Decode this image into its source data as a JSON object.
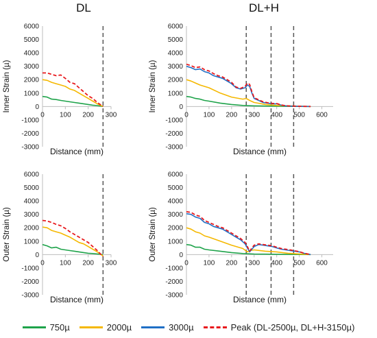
{
  "column_titles": [
    "DL",
    "DL+H"
  ],
  "colors": {
    "750": "#1ea34a",
    "2000": "#f5b800",
    "3000": "#1f6fc5",
    "peak": "#e8191d",
    "dashed_line": "#555555"
  },
  "legend": [
    {
      "label": "750µ",
      "key": "750",
      "style": "solid"
    },
    {
      "label": "2000µ",
      "key": "2000",
      "style": "solid"
    },
    {
      "label": "3000µ",
      "key": "3000",
      "style": "solid"
    },
    {
      "label": "Peak (DL-2500µ, DL+H-3150µ)",
      "key": "peak",
      "style": "dashed"
    }
  ],
  "chart_data": [
    {
      "id": "dl-inner",
      "type": "line",
      "column": "DL",
      "ylabel": "Inner Strain (µ)",
      "xlabel": "Distance (mm)",
      "ylim": [
        -3000,
        6000
      ],
      "yticks": [
        -3000,
        -2000,
        -1000,
        0,
        1000,
        2000,
        3000,
        4000,
        5000,
        6000
      ],
      "xlim": [
        0,
        300
      ],
      "xtick_labels": [
        "0",
        "100",
        "200",
        "300"
      ],
      "xticks": [
        0,
        100,
        200,
        300
      ],
      "vlines": [
        265
      ],
      "series": [
        {
          "key": "750",
          "x": [
            0,
            20,
            40,
            60,
            80,
            100,
            120,
            140,
            160,
            180,
            200,
            220,
            240,
            265
          ],
          "y": [
            750,
            700,
            550,
            520,
            450,
            400,
            350,
            300,
            250,
            200,
            150,
            100,
            70,
            0
          ]
        },
        {
          "key": "2000",
          "x": [
            0,
            20,
            40,
            60,
            80,
            100,
            120,
            140,
            160,
            180,
            200,
            220,
            240,
            265
          ],
          "y": [
            2000,
            1950,
            1800,
            1700,
            1600,
            1500,
            1300,
            1200,
            1000,
            800,
            600,
            400,
            200,
            0
          ]
        },
        {
          "key": "peak",
          "x": [
            0,
            20,
            40,
            60,
            80,
            100,
            120,
            140,
            160,
            180,
            200,
            220,
            240,
            265
          ],
          "y": [
            2500,
            2500,
            2400,
            2300,
            2350,
            2100,
            1800,
            1700,
            1400,
            1100,
            800,
            600,
            300,
            0
          ]
        }
      ]
    },
    {
      "id": "dlh-inner",
      "type": "line",
      "column": "DL+H",
      "ylabel": "Inner Strain (µ)",
      "xlabel": "Distance (mm)",
      "ylim": [
        -3000,
        6000
      ],
      "yticks": [
        -3000,
        -2000,
        -1000,
        0,
        1000,
        2000,
        3000,
        4000,
        5000,
        6000
      ],
      "xlim": [
        0,
        650
      ],
      "xtick_labels": [
        "0",
        "100",
        "200",
        "300",
        "400",
        "500",
        "600"
      ],
      "xticks": [
        0,
        100,
        200,
        300,
        400,
        500,
        600
      ],
      "vlines": [
        265,
        375,
        475
      ],
      "series": [
        {
          "key": "750",
          "x": [
            0,
            20,
            40,
            60,
            80,
            100,
            150,
            200,
            250,
            300,
            350,
            400,
            450,
            500,
            550
          ],
          "y": [
            750,
            700,
            600,
            550,
            450,
            400,
            250,
            150,
            80,
            50,
            30,
            20,
            10,
            5,
            0
          ]
        },
        {
          "key": "2000",
          "x": [
            0,
            20,
            40,
            60,
            80,
            100,
            150,
            200,
            250,
            265,
            280,
            300,
            350,
            400,
            450,
            500,
            550
          ],
          "y": [
            2000,
            1900,
            1750,
            1600,
            1500,
            1400,
            1000,
            700,
            550,
            600,
            450,
            300,
            150,
            80,
            50,
            20,
            0
          ]
        },
        {
          "key": "3000",
          "x": [
            0,
            20,
            40,
            60,
            80,
            100,
            120,
            140,
            160,
            180,
            200,
            220,
            240,
            260,
            270,
            280,
            290,
            300,
            320,
            340,
            360,
            380,
            400,
            420,
            440,
            460,
            480,
            500,
            520,
            550
          ],
          "y": [
            3000,
            2900,
            2750,
            2800,
            2600,
            2500,
            2300,
            2200,
            2100,
            1900,
            1700,
            1400,
            1300,
            1400,
            1600,
            1500,
            1000,
            600,
            450,
            300,
            250,
            200,
            200,
            100,
            50,
            30,
            20,
            10,
            5,
            0
          ]
        },
        {
          "key": "peak",
          "x": [
            0,
            20,
            40,
            60,
            80,
            100,
            120,
            140,
            160,
            180,
            200,
            220,
            240,
            260,
            270,
            280,
            290,
            300,
            320,
            340,
            360,
            380,
            400,
            420,
            440,
            460,
            480,
            500,
            520,
            550
          ],
          "y": [
            3150,
            3050,
            2900,
            2950,
            2750,
            2650,
            2450,
            2300,
            2200,
            2000,
            1800,
            1450,
            1350,
            1500,
            1750,
            1650,
            1100,
            650,
            500,
            350,
            280,
            230,
            220,
            120,
            60,
            40,
            25,
            15,
            8,
            0
          ]
        }
      ]
    },
    {
      "id": "dl-outer",
      "type": "line",
      "column": "DL",
      "ylabel": "Outer Strain (µ)",
      "xlabel": "Distance (mm)",
      "ylim": [
        -3000,
        6000
      ],
      "yticks": [
        -3000,
        -2000,
        -1000,
        0,
        1000,
        2000,
        3000,
        4000,
        5000,
        6000
      ],
      "xlim": [
        0,
        300
      ],
      "xtick_labels": [
        "0",
        "100",
        "200",
        "300"
      ],
      "xticks": [
        0,
        100,
        200,
        300
      ],
      "vlines": [
        265
      ],
      "series": [
        {
          "key": "750",
          "x": [
            0,
            20,
            40,
            60,
            80,
            100,
            120,
            140,
            160,
            180,
            200,
            220,
            240,
            265
          ],
          "y": [
            750,
            650,
            500,
            550,
            400,
            350,
            300,
            250,
            200,
            150,
            100,
            80,
            50,
            0
          ]
        },
        {
          "key": "2000",
          "x": [
            0,
            20,
            40,
            60,
            80,
            100,
            120,
            140,
            160,
            180,
            200,
            220,
            240,
            265
          ],
          "y": [
            2050,
            2000,
            1800,
            1700,
            1600,
            1450,
            1300,
            1100,
            900,
            800,
            600,
            400,
            200,
            -100
          ]
        },
        {
          "key": "peak",
          "x": [
            0,
            20,
            40,
            60,
            80,
            100,
            120,
            140,
            160,
            180,
            200,
            220,
            240,
            265
          ],
          "y": [
            2550,
            2500,
            2400,
            2250,
            2150,
            1950,
            1700,
            1500,
            1300,
            1100,
            900,
            600,
            300,
            -150
          ]
        }
      ]
    },
    {
      "id": "dlh-outer",
      "type": "line",
      "column": "DL+H",
      "ylabel": "Outer Strain (µ)",
      "xlabel": "Distance (mm)",
      "ylim": [
        -3000,
        6000
      ],
      "yticks": [
        -3000,
        -2000,
        -1000,
        0,
        1000,
        2000,
        3000,
        4000,
        5000,
        6000
      ],
      "xlim": [
        0,
        650
      ],
      "xtick_labels": [
        "0",
        "100",
        "200",
        "300",
        "400",
        "500",
        "600"
      ],
      "xticks": [
        0,
        100,
        200,
        300,
        400,
        500,
        600
      ],
      "vlines": [
        265,
        375,
        475
      ],
      "series": [
        {
          "key": "750",
          "x": [
            0,
            20,
            40,
            60,
            80,
            100,
            150,
            200,
            250,
            300,
            350,
            400,
            450,
            500,
            550
          ],
          "y": [
            750,
            700,
            550,
            550,
            400,
            350,
            250,
            150,
            80,
            40,
            30,
            20,
            10,
            5,
            0
          ]
        },
        {
          "key": "2000",
          "x": [
            0,
            20,
            40,
            60,
            80,
            100,
            150,
            200,
            250,
            270,
            280,
            300,
            350,
            400,
            450,
            500,
            550
          ],
          "y": [
            2000,
            1900,
            1700,
            1600,
            1400,
            1300,
            1000,
            700,
            450,
            200,
            300,
            350,
            250,
            200,
            100,
            50,
            0
          ]
        },
        {
          "key": "3000",
          "x": [
            0,
            20,
            40,
            60,
            80,
            100,
            120,
            140,
            160,
            180,
            200,
            220,
            240,
            260,
            270,
            280,
            290,
            300,
            320,
            340,
            360,
            380,
            400,
            420,
            440,
            460,
            480,
            500,
            520,
            550
          ],
          "y": [
            3050,
            3000,
            2800,
            2700,
            2400,
            2300,
            2100,
            2000,
            1900,
            1700,
            1500,
            1300,
            1100,
            800,
            500,
            200,
            400,
            600,
            750,
            700,
            650,
            600,
            500,
            400,
            350,
            300,
            250,
            200,
            100,
            0
          ]
        },
        {
          "key": "peak",
          "x": [
            0,
            20,
            40,
            60,
            80,
            100,
            120,
            140,
            160,
            180,
            200,
            220,
            240,
            260,
            270,
            280,
            290,
            300,
            320,
            340,
            360,
            380,
            400,
            420,
            440,
            460,
            480,
            500,
            520,
            550
          ],
          "y": [
            3200,
            3150,
            2950,
            2850,
            2550,
            2400,
            2250,
            2100,
            2000,
            1800,
            1600,
            1400,
            1200,
            900,
            600,
            250,
            500,
            700,
            800,
            750,
            700,
            650,
            550,
            450,
            400,
            350,
            280,
            220,
            110,
            0
          ]
        }
      ]
    }
  ]
}
